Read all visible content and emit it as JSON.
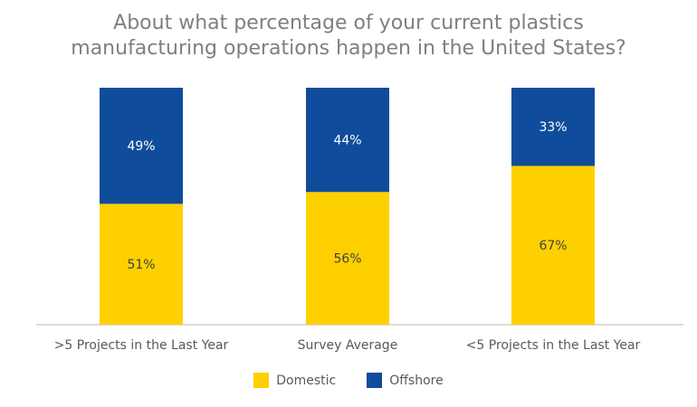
{
  "chart_data": {
    "type": "bar",
    "stacked": true,
    "percent_stacked": true,
    "title": "About what percentage of your current plastics manufacturing operations happen in the United States?",
    "title_lines": [
      "About what percentage of your current plastics",
      "manufacturing operations happen in the United States?"
    ],
    "categories": [
      ">5 Projects in the Last Year",
      "Survey Average",
      "<5 Projects in the Last Year"
    ],
    "series": [
      {
        "name": "Domestic",
        "values": [
          51,
          56,
          67
        ],
        "labels": [
          "51%",
          "56%",
          "67%"
        ],
        "color": "#FFD000",
        "label_color": "#404040"
      },
      {
        "name": "Offshore",
        "values": [
          49,
          44,
          33
        ],
        "labels": [
          "49%",
          "44%",
          "33%"
        ],
        "color": "#0F4C9C",
        "label_color": "#ffffff"
      }
    ],
    "ylim": [
      0,
      100
    ],
    "grid": false,
    "legend_position": "bottom-center"
  }
}
